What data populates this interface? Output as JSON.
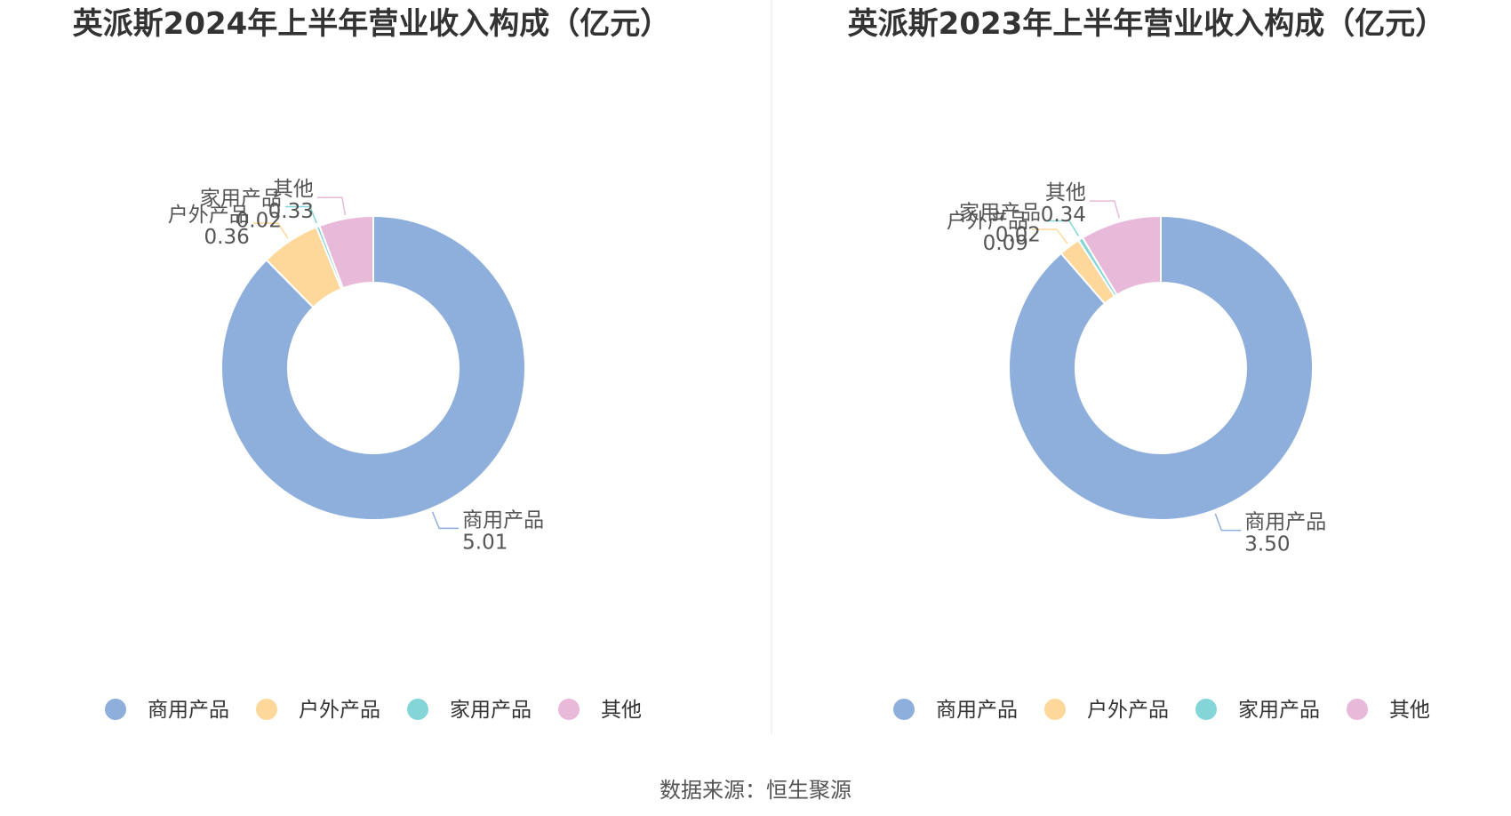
{
  "colors": {
    "商用产品": "#8eaedb",
    "户外产品": "#fdd89a",
    "家用产品": "#84d5d7",
    "其他": "#e9b9da"
  },
  "source": "数据来源：恒生聚源",
  "chart_data": [
    {
      "type": "pie",
      "variant": "donut",
      "title": "英派斯2024年上半年营业收入构成（亿元）",
      "categories": [
        "商用产品",
        "户外产品",
        "家用产品",
        "其他"
      ],
      "values": [
        5.01,
        0.36,
        0.02,
        0.33
      ],
      "value_labels": [
        "5.01",
        "0.36",
        "0.02",
        "0.33"
      ],
      "legend": "bottom"
    },
    {
      "type": "pie",
      "variant": "donut",
      "title": "英派斯2023年上半年营业收入构成（亿元）",
      "categories": [
        "商用产品",
        "户外产品",
        "家用产品",
        "其他"
      ],
      "values": [
        3.5,
        0.09,
        0.02,
        0.34
      ],
      "value_labels": [
        "3.50",
        "0.09",
        "0.02",
        "0.34"
      ],
      "legend": "bottom"
    }
  ]
}
